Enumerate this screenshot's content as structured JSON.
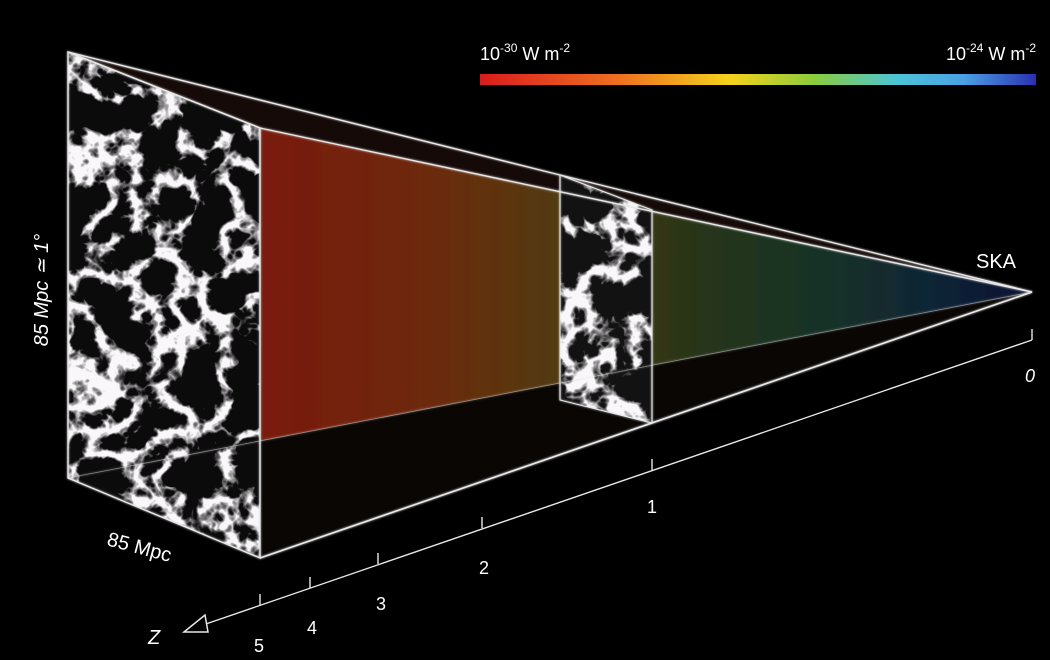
{
  "colorbar": {
    "min_label": {
      "base": "10",
      "exp": "-30",
      "unit": " W m",
      "unit_exp": "-2"
    },
    "max_label": {
      "base": "10",
      "exp": "-24",
      "unit": " W m",
      "unit_exp": "-2"
    },
    "colors": [
      "#d81c1c",
      "#f07020",
      "#f4d21c",
      "#8ccc3c",
      "#4cc4d8",
      "#4aa0e4",
      "#2a30b0"
    ]
  },
  "telescope_label": "SKA",
  "box_height_label": "85 Mpc ≃ 1°",
  "box_depth_label": "85 Mpc",
  "axis": {
    "name": "Z",
    "ticks": [
      "0",
      "1",
      "2",
      "3",
      "4",
      "5"
    ]
  },
  "colors": {
    "background": "#000000",
    "edge": "#e8e8e8",
    "text": "#ffffff"
  }
}
